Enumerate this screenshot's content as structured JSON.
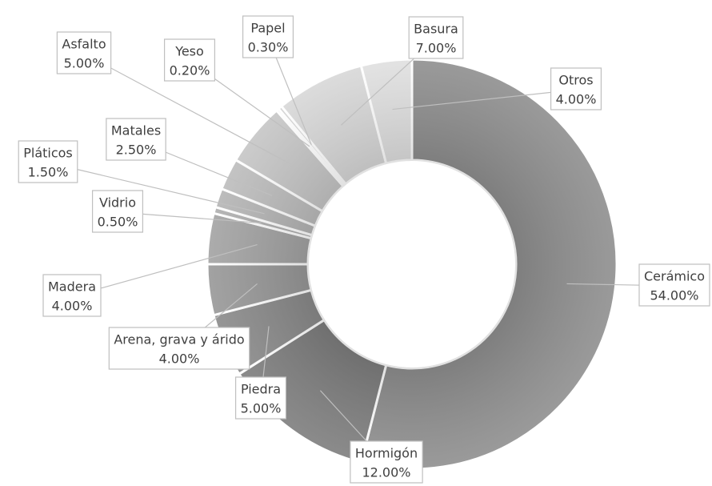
{
  "chart_data": {
    "type": "donut",
    "categories": [
      "Cerámico",
      "Hormigón",
      "Piedra",
      "Arena, grava y árido",
      "Madera",
      "Vidrio",
      "Pláticos",
      "Matales",
      "Asfalto",
      "Yeso",
      "Papel",
      "Basura",
      "Otros"
    ],
    "values": [
      54,
      12,
      5,
      4,
      4,
      0.5,
      1.5,
      2.5,
      5,
      0.2,
      0.3,
      7,
      4
    ],
    "value_labels": [
      "54.00%",
      "12.00%",
      "5.00%",
      "4.00%",
      "4.00%",
      "0.50%",
      "1.50%",
      "2.50%",
      "5.00%",
      "0.20%",
      "0.30%",
      "7.00%",
      "4.00%"
    ],
    "colors": [
      "#8f8f8f",
      "#7e7e7e",
      "#8a8a8a",
      "#989898",
      "#a3a3a3",
      "#aeaeae",
      "#b5b5b5",
      "#bdbdbd",
      "#c6c6c6",
      "#cdcdcd",
      "#d2d2d2",
      "#d8d8d8",
      "#e0e0e0"
    ]
  }
}
